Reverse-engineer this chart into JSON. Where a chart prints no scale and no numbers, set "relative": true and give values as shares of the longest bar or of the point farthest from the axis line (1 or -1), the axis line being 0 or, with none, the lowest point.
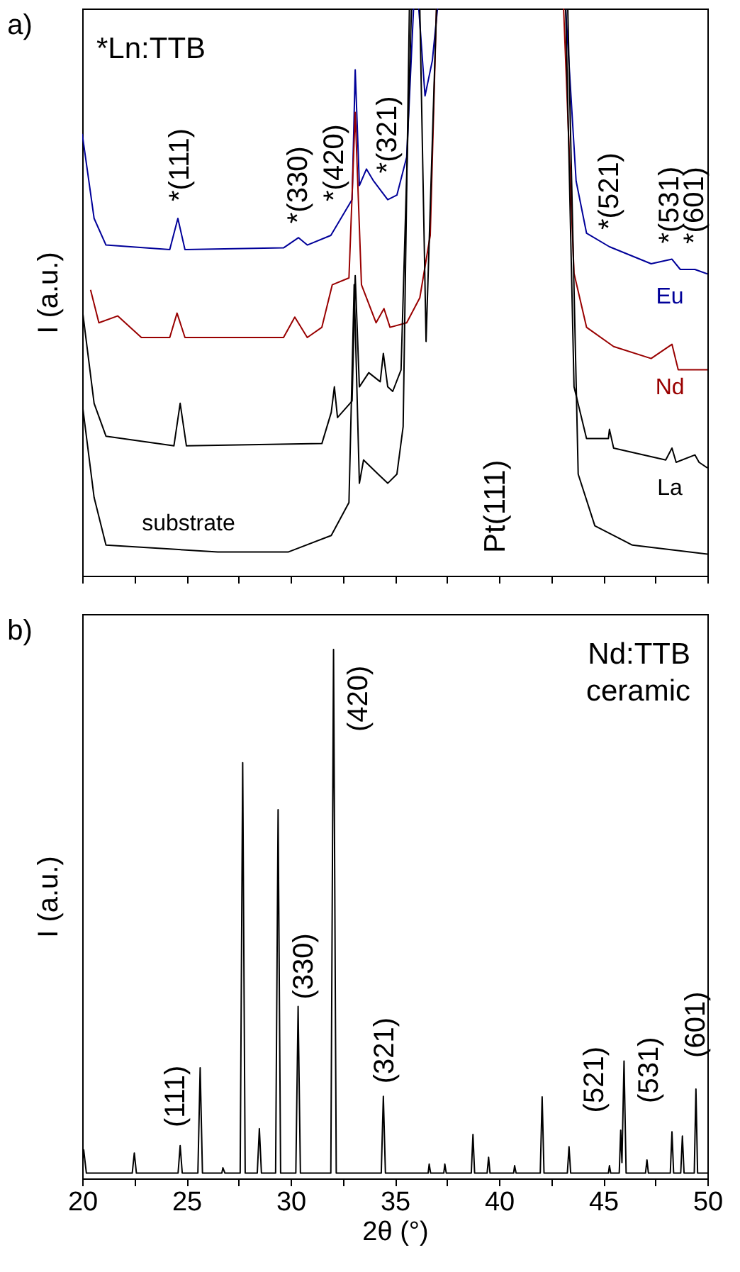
{
  "chart_data": [
    {
      "type": "line",
      "title": "a)",
      "ylabel": "I (a.u.)",
      "relative": true,
      "xlim": [
        20,
        50
      ],
      "xticks": [
        20,
        {
          "value": 22.5,
          "label": null
        },
        25,
        {
          "value": 27.5,
          "label": null
        },
        30,
        {
          "value": 32.5,
          "label": null
        },
        35,
        {
          "value": 37.5,
          "label": null
        },
        40,
        {
          "value": 42.5,
          "label": null
        },
        45,
        {
          "value": 47.5,
          "label": null
        },
        50
      ],
      "tick_labels": false,
      "legend": false,
      "grid": false,
      "marker": "none",
      "line_style": "solid",
      "series": [
        {
          "name": "Eu",
          "color": "#000099",
          "x": [
            20.0,
            20.57,
            21.14,
            24.2,
            24.59,
            24.93,
            29.66,
            30.38,
            30.8,
            31.93,
            32.95,
            33.1,
            33.3,
            33.64,
            33.98,
            34.66,
            35.1,
            35.57,
            35.9,
            36.0,
            36.15,
            36.45,
            36.8,
            37.05,
            40.0,
            43.2,
            43.7,
            44.2,
            45.3,
            47.3,
            48.3,
            48.7,
            49.4,
            50.0
          ],
          "values": [
            0.779,
            0.63,
            0.583,
            0.575,
            0.63,
            0.575,
            0.578,
            0.596,
            0.583,
            0.6,
            0.663,
            0.892,
            0.688,
            0.717,
            0.696,
            0.663,
            0.671,
            0.738,
            1.0,
            null,
            1.0,
            0.846,
            0.908,
            1.0,
            null,
            1.0,
            0.696,
            0.604,
            0.58,
            0.55,
            0.558,
            0.54,
            0.54,
            0.532
          ]
        },
        {
          "name": "Nd",
          "color": "#990000",
          "x": [
            20.4,
            20.8,
            21.7,
            22.84,
            24.2,
            24.55,
            24.93,
            29.66,
            30.2,
            30.8,
            31.5,
            32.0,
            32.8,
            33.1,
            33.4,
            34.1,
            34.48,
            34.77,
            35.57,
            36.2,
            36.7,
            37.0,
            40.0,
            43.1,
            43.6,
            44.2,
            45.5,
            47.3,
            48.3,
            48.6,
            50.0
          ],
          "values": [
            0.504,
            0.446,
            0.458,
            0.42,
            0.42,
            0.463,
            0.42,
            0.42,
            0.456,
            0.42,
            0.438,
            0.513,
            0.525,
            0.817,
            0.513,
            0.446,
            0.471,
            0.438,
            0.446,
            0.49,
            0.6,
            1.0,
            null,
            1.0,
            0.533,
            0.438,
            0.404,
            0.383,
            0.408,
            0.363,
            0.363
          ]
        },
        {
          "name": "La",
          "color": "#000000",
          "x": [
            20.0,
            20.57,
            21.14,
            24.4,
            24.7,
            25.0,
            31.5,
            31.95,
            32.1,
            32.25,
            32.95,
            33.1,
            33.3,
            33.75,
            34.3,
            34.45,
            34.66,
            34.9,
            35.3,
            35.8,
            36.0,
            36.2,
            36.5,
            37.0,
            40.0,
            43.2,
            43.6,
            44.2,
            45.25,
            45.3,
            45.5,
            48.0,
            48.3,
            48.5,
            49.4,
            49.6,
            50.0
          ],
          "values": [
            0.471,
            0.304,
            0.246,
            0.229,
            0.304,
            0.229,
            0.233,
            0.288,
            0.333,
            0.279,
            0.308,
            0.529,
            0.333,
            0.358,
            0.342,
            0.392,
            0.333,
            0.325,
            0.363,
            1.0,
            null,
            1.0,
            0.413,
            1.0,
            null,
            1.0,
            0.333,
            0.242,
            0.242,
            0.258,
            0.225,
            0.204,
            0.225,
            0.2,
            0.213,
            0.2,
            0.19
          ]
        },
        {
          "name": "substrate",
          "color": "#000000",
          "x": [
            20.0,
            20.57,
            21.14,
            26.5,
            29.9,
            31.95,
            32.8,
            33.05,
            33.3,
            33.5,
            34.2,
            34.66,
            35.1,
            35.4,
            35.7,
            40.0,
            43.3,
            43.8,
            44.6,
            46.4,
            50.0
          ],
          "values": [
            0.304,
            0.138,
            0.054,
            0.042,
            0.042,
            0.071,
            0.129,
            0.513,
            0.163,
            0.204,
            0.179,
            0.163,
            0.179,
            0.263,
            1.0,
            null,
            1.0,
            0.179,
            0.088,
            0.054,
            0.038
          ]
        }
      ],
      "annotations": [
        "*Ln:TTB",
        {
          "text": "*(111)",
          "x": 24.59,
          "y": 0.63
        },
        {
          "text": "*(330)",
          "x": 30.38,
          "y": 0.596
        },
        {
          "text": "*(420)",
          "x": 31.93,
          "y": 0.6
        },
        {
          "text": "*(321)",
          "x": 33.64,
          "y": 0.717
        },
        "Pt(111)",
        {
          "text": "*(521)",
          "x": 45.3,
          "y": 0.58
        },
        {
          "text": "*(531)",
          "x": 48.3,
          "y": 0.558
        },
        {
          "text": "*(601)",
          "x": 49.4,
          "y": 0.54
        }
      ]
    },
    {
      "type": "line",
      "title": "b)",
      "xlabel": "2θ (°)",
      "ylabel": "I (a.u.)",
      "relative": true,
      "xlim": [
        20,
        50
      ],
      "xticks": [
        20,
        {
          "value": 22.5,
          "label": null
        },
        25,
        {
          "value": 27.5,
          "label": null
        },
        30,
        {
          "value": 32.5,
          "label": null
        },
        35,
        {
          "value": 37.5,
          "label": null
        },
        40,
        {
          "value": 42.5,
          "label": null
        },
        45,
        {
          "value": 47.5,
          "label": null
        },
        50
      ],
      "tick_labels": "x",
      "grid": false,
      "marker": "none",
      "line_style": "solid",
      "series": [
        {
          "color": "#000000",
          "x": [
            20.0,
            20.07,
            20.2,
            22.4,
            22.5,
            22.6,
            24.6,
            24.7,
            24.8,
            25.55,
            25.66,
            25.77,
            26.7,
            26.75,
            26.85,
            27.58,
            27.7,
            27.82,
            28.4,
            28.5,
            28.6,
            29.28,
            29.4,
            29.52,
            30.25,
            30.36,
            30.47,
            31.93,
            32.06,
            32.19,
            34.35,
            34.45,
            34.55,
            36.6,
            36.65,
            36.72,
            37.35,
            37.4,
            37.47,
            38.67,
            38.75,
            38.83,
            39.43,
            39.5,
            39.57,
            40.7,
            40.75,
            40.82,
            41.98,
            42.07,
            42.16,
            43.28,
            43.36,
            43.44,
            45.25,
            45.3,
            45.36,
            45.77,
            45.84,
            45.9,
            46.0,
            46.1,
            47.03,
            47.1,
            47.17,
            48.22,
            48.3,
            48.38,
            48.72,
            48.8,
            48.88,
            49.37,
            49.45,
            49.53,
            50.0
          ],
          "values": [
            0.02,
            0.054,
            0.01,
            0.01,
            0.048,
            0.01,
            0.01,
            0.062,
            0.01,
            0.01,
            0.209,
            0.01,
            0.01,
            0.02,
            0.01,
            0.01,
            0.786,
            0.01,
            0.01,
            0.094,
            0.01,
            0.01,
            0.697,
            0.01,
            0.01,
            0.325,
            0.01,
            0.01,
            1.0,
            0.01,
            0.01,
            0.155,
            0.01,
            0.01,
            0.027,
            0.01,
            0.01,
            0.027,
            0.01,
            0.01,
            0.083,
            0.01,
            0.01,
            0.04,
            0.01,
            0.01,
            0.024,
            0.01,
            0.01,
            0.154,
            0.01,
            0.01,
            0.06,
            0.01,
            0.01,
            0.024,
            0.01,
            0.01,
            0.091,
            0.03,
            0.222,
            0.01,
            0.01,
            0.035,
            0.01,
            0.01,
            0.088,
            0.01,
            0.01,
            0.08,
            0.01,
            0.01,
            0.169,
            0.01,
            0.01
          ]
        }
      ],
      "annotations": [
        "Nd:TTB",
        "ceramic",
        {
          "text": "(111)",
          "x": 25.66,
          "y": 0.209
        },
        {
          "text": "(330)",
          "x": 30.36,
          "y": 0.325
        },
        {
          "text": "(420)",
          "x": 32.06,
          "y": 1.0
        },
        {
          "text": "(321)",
          "x": 34.45,
          "y": 0.155
        },
        {
          "text": "(521)",
          "x": 46.0,
          "y": 0.222
        },
        {
          "text": "(531)",
          "x": 47.1,
          "y": 0.035
        },
        {
          "text": "(601)",
          "x": 49.45,
          "y": 0.169
        }
      ]
    }
  ]
}
